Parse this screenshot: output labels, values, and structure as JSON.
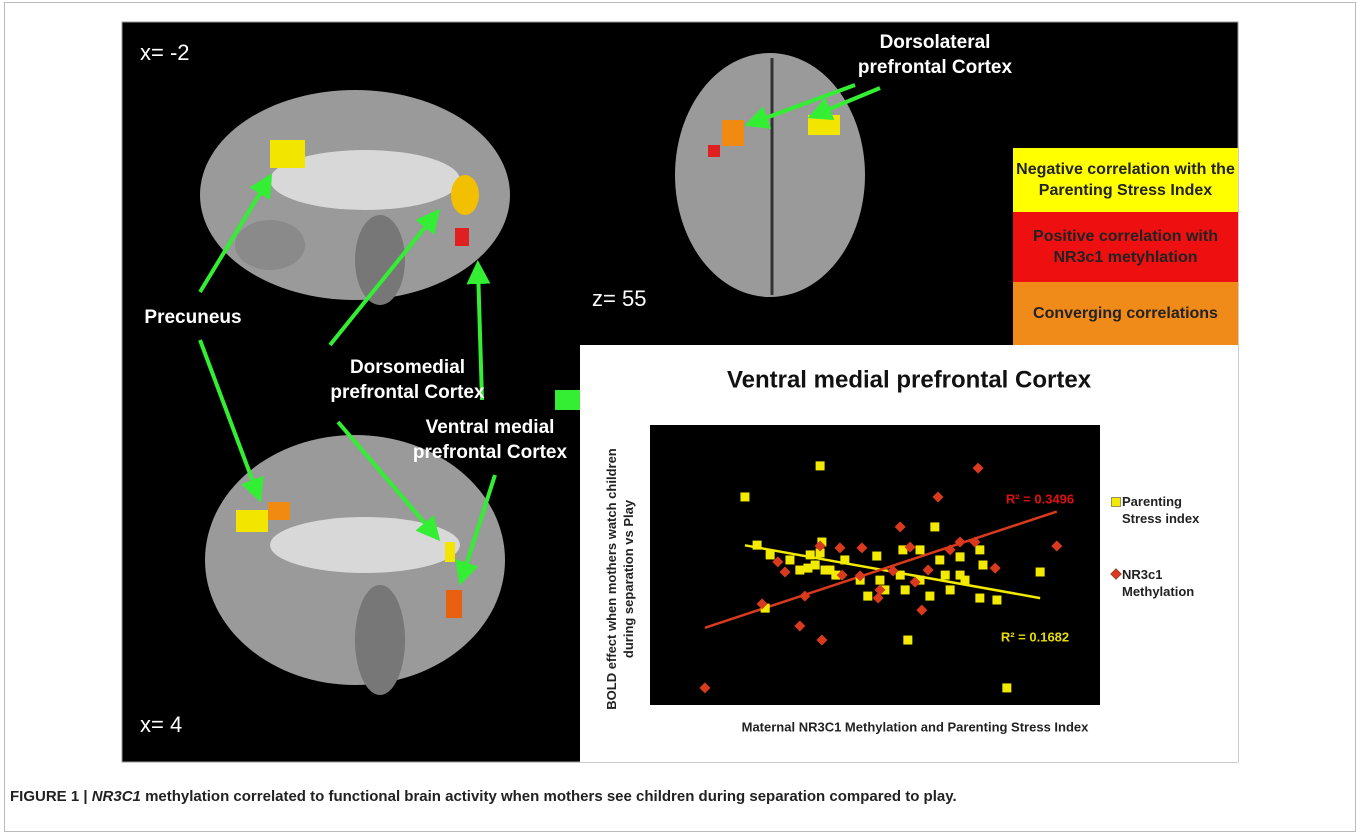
{
  "figure": {
    "labels": {
      "x_top": "x= -2",
      "x_bottom": "x= 4",
      "z": "z= 55",
      "precuneus": "Precuneus",
      "dorsomedial": "Dorsomedial prefrontal Cortex",
      "ventral": "Ventral medial prefrontal Cortex",
      "dorsolateral": "Dorsolateral prefrontal Cortex"
    },
    "key": [
      "Negative correlation with the Parenting Stress Index",
      "Positive correlation with NR3c1 metyhlation",
      "Converging correlations"
    ]
  },
  "chart_data": {
    "type": "scatter",
    "title": "Ventral medial prefrontal Cortex",
    "x_label": "Maternal NR3C1 Methylation and Parenting Stress Index",
    "y_label": "BOLD effect when mothers watch children during separation vs Play",
    "xlim": [
      0,
      100
    ],
    "ylim": [
      0,
      100
    ],
    "series": [
      {
        "name": "Parenting Stress index",
        "color": "#f2ea00",
        "marker": "square",
        "r2_label": "R² = 0.1682",
        "label_color": "#e8dc00",
        "x": [
          21.1,
          37.8,
          23.8,
          38.2,
          35.6,
          36.7,
          38.9,
          40.0,
          33.3,
          35.1,
          31.1,
          26.7,
          43.3,
          50.4,
          56.2,
          60.0,
          63.3,
          64.4,
          68.9,
          73.3,
          74.0,
          68.9,
          65.6,
          60.0,
          55.6,
          51.1,
          46.7,
          48.4,
          52.2,
          56.7,
          62.2,
          66.7,
          70.0,
          73.3,
          77.1,
          86.7,
          57.3,
          79.3,
          25.6,
          41.3,
          37.8
        ],
        "values": [
          74.3,
          85.4,
          57.1,
          58.2,
          53.6,
          50.0,
          48.2,
          48.2,
          48.2,
          48.9,
          51.8,
          53.6,
          51.8,
          53.2,
          55.4,
          55.4,
          63.6,
          51.8,
          52.9,
          55.4,
          50.0,
          46.4,
          46.4,
          44.6,
          46.4,
          44.6,
          44.6,
          38.9,
          41.1,
          41.1,
          38.9,
          41.1,
          44.6,
          38.2,
          37.5,
          47.5,
          23.2,
          6.1,
          34.6,
          46.4,
          54.3
        ]
      },
      {
        "name": "NR3c1 Methylation",
        "color": "#d93a1e",
        "marker": "diamond",
        "r2_label": "R² = 0.3496",
        "label_color": "#e01010",
        "x": [
          12.2,
          24.9,
          28.4,
          30.0,
          33.3,
          34.4,
          38.2,
          37.8,
          42.2,
          47.1,
          46.7,
          50.7,
          51.1,
          54.0,
          55.6,
          57.8,
          58.9,
          60.4,
          61.8,
          64.0,
          66.7,
          68.9,
          72.2,
          72.9,
          76.7,
          90.4,
          42.7
        ],
        "values": [
          6.1,
          36.1,
          51.1,
          47.5,
          28.2,
          38.9,
          23.2,
          56.8,
          56.1,
          56.1,
          46.1,
          38.2,
          41.1,
          47.9,
          63.6,
          56.4,
          43.9,
          33.9,
          48.2,
          74.3,
          55.4,
          58.2,
          58.2,
          84.6,
          48.9,
          56.8,
          46.4
        ]
      }
    ]
  },
  "caption": {
    "label": "FIGURE 1 |",
    "gene": "NR3C1",
    "text": "methylation correlated to functional brain activity when mothers see children during separation compared to play."
  }
}
